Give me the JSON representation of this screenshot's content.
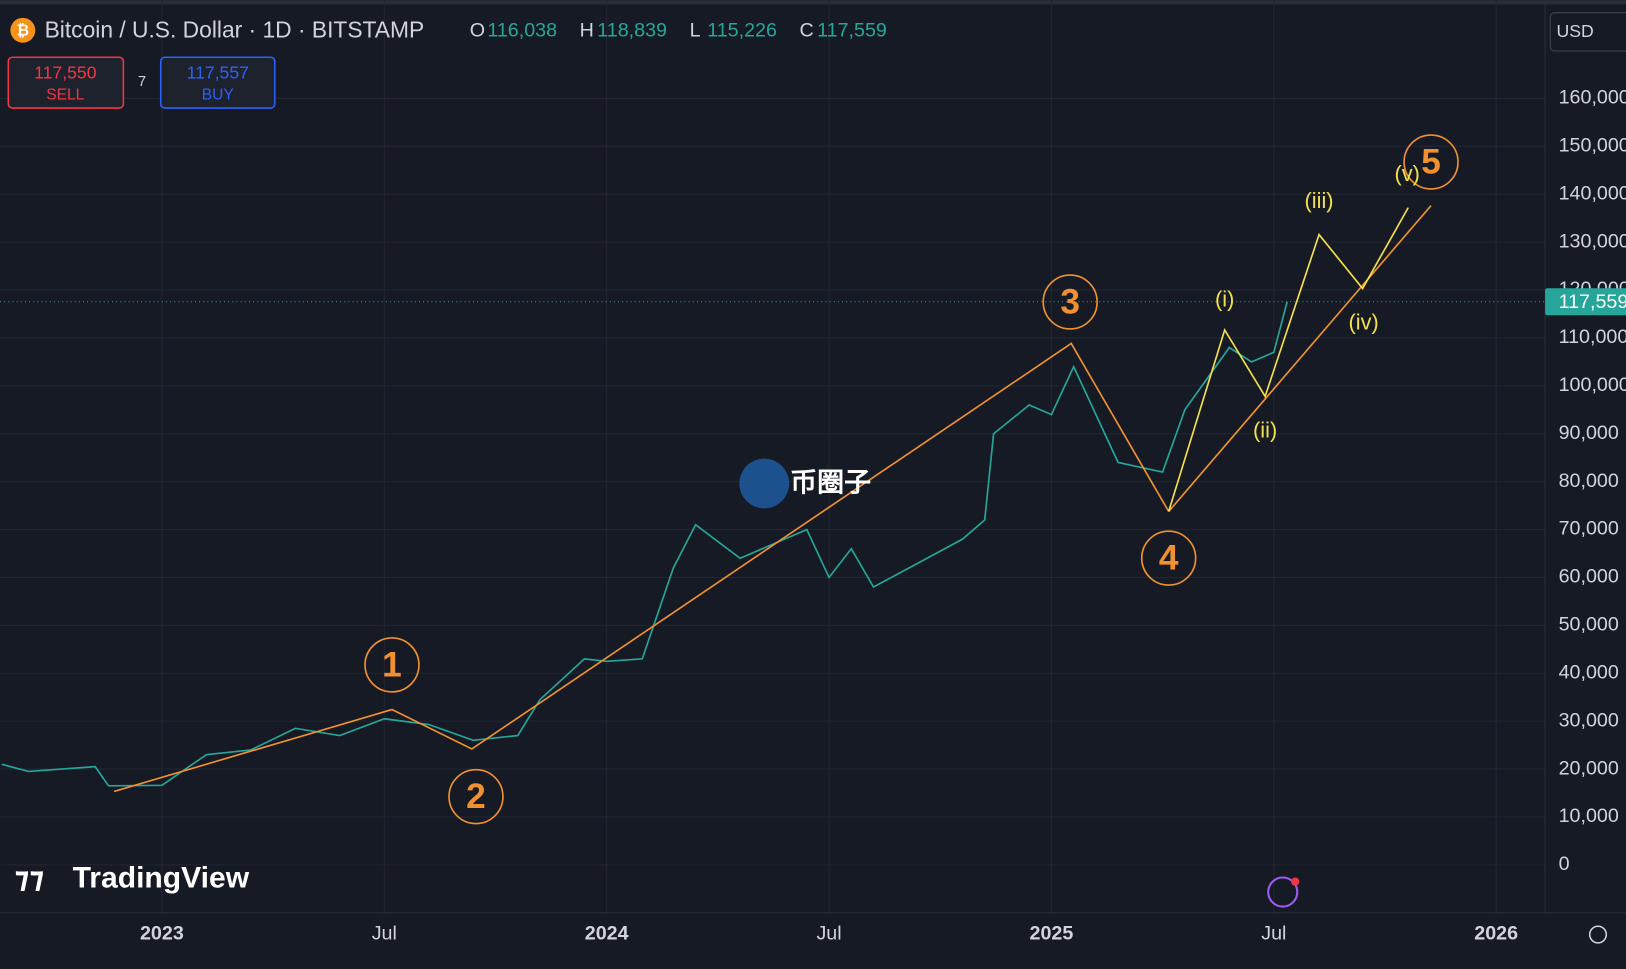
{
  "header": {
    "symbol_title": "Bitcoin / U.S. Dollar · 1D · BITSTAMP",
    "ohlc": [
      {
        "label": "O",
        "value": "116,038"
      },
      {
        "label": "H",
        "value": "118,839"
      },
      {
        "label": "L",
        "value": "115,226"
      },
      {
        "label": "C",
        "value": "117,559"
      }
    ]
  },
  "trade": {
    "sell_price": "117,550",
    "sell_label": "SELL",
    "spread": "7",
    "buy_price": "117,557",
    "buy_label": "BUY"
  },
  "currency": "USD",
  "brand": "TradingView",
  "watermark": "币圈子",
  "chart_data": {
    "type": "line",
    "x": [
      2022.64,
      2022.7,
      2022.85,
      2022.88,
      2023.0,
      2023.1,
      2023.2,
      2023.3,
      2023.4,
      2023.5,
      2023.6,
      2023.7,
      2023.8,
      2023.85,
      2023.95,
      2024.0,
      2024.08,
      2024.15,
      2024.2,
      2024.3,
      2024.4,
      2024.45,
      2024.5,
      2024.55,
      2024.6,
      2024.7,
      2024.8,
      2024.85,
      2024.87,
      2024.95,
      2025.0,
      2025.05,
      2025.15,
      2025.25,
      2025.3,
      2025.4,
      2025.45,
      2025.5,
      2025.53
    ],
    "values": [
      21000,
      19500,
      20500,
      16500,
      16600,
      23000,
      24000,
      28500,
      27000,
      30500,
      29300,
      26000,
      27000,
      34500,
      43000,
      42500,
      43000,
      62000,
      71000,
      64000,
      68000,
      70000,
      60000,
      66000,
      58000,
      63000,
      68000,
      72000,
      90000,
      96000,
      94000,
      104000,
      84000,
      82000,
      95000,
      108000,
      105000,
      107000,
      117559
    ],
    "color": "#26a69a",
    "price_line": {
      "value": 117559,
      "label": "117,559"
    },
    "xlim": [
      2022.636,
      2026.11
    ],
    "xticks": [
      2023,
      {
        "value": 2023.5,
        "label": "Jul"
      },
      2024,
      {
        "value": 2024.5,
        "label": "Jul"
      },
      2025,
      {
        "value": 2025.5,
        "label": "Jul"
      },
      2026
    ],
    "ylim": [
      -10000,
      180500
    ],
    "yticks": [
      0,
      {
        "value": 10000,
        "label": "10,000"
      },
      {
        "value": 20000,
        "label": "20,000"
      },
      {
        "value": 30000,
        "label": "30,000"
      },
      {
        "value": 40000,
        "label": "40,000"
      },
      {
        "value": 50000,
        "label": "50,000"
      },
      {
        "value": 60000,
        "label": "60,000"
      },
      {
        "value": 70000,
        "label": "70,000"
      },
      {
        "value": 80000,
        "label": "80,000"
      },
      {
        "value": 90000,
        "label": "90,000"
      },
      {
        "value": 100000,
        "label": "100,000"
      },
      {
        "value": 110000,
        "label": "110,000"
      },
      {
        "value": 120000,
        "label": "120,000"
      },
      {
        "value": 130000,
        "label": "130,000"
      },
      {
        "value": 140000,
        "label": "140,000"
      },
      {
        "value": 150000,
        "label": "150,000"
      },
      {
        "value": 160000,
        "label": "160,000"
      }
    ],
    "grid": true,
    "wave_labels": [
      "1",
      "2",
      "3",
      "4",
      "5"
    ],
    "subwave_labels": [
      "(i)",
      "(ii)",
      "(iii)",
      "(iv)",
      "(v)"
    ]
  }
}
